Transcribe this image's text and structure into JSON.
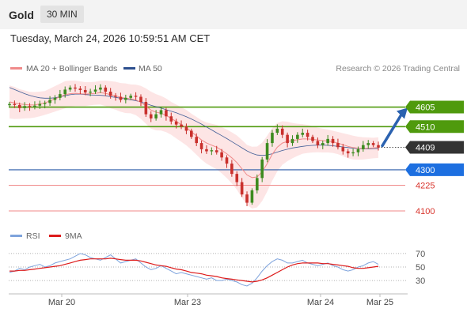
{
  "header": {
    "title": "Gold",
    "timeframe": "30 MIN",
    "datetime": "Tuesday, March 24, 2026 10:59:51 AM CET"
  },
  "legend": {
    "items": [
      {
        "label": "MA 20 + Bollinger Bands",
        "color": "#f08a8a"
      },
      {
        "label": "MA 50",
        "color": "#2d4f8e"
      }
    ],
    "credit": "Research © 2026 Trading Central"
  },
  "rsi_legend": {
    "items": [
      {
        "label": "RSI",
        "color": "#7ea3dc"
      },
      {
        "label": "9MA",
        "color": "#dd1b1b"
      }
    ]
  },
  "colors": {
    "resistance": "#4f9a0d",
    "pivot_line": "#2a5aa8",
    "pivot_badge": "#1d6fe0",
    "support": "#f08a8a",
    "support_text": "#d8322a",
    "last_badge": "#333333",
    "arrow": "#2b62b0",
    "candle_up": "#3d8b1f",
    "candle_down": "#c9302c",
    "band_fill": "#fde0e0"
  },
  "chart_data": [
    {
      "type": "candlestick",
      "instrument": "Gold",
      "timeframe": "30 MIN",
      "ylim": [
        4050,
        4730
      ],
      "x_ticks": [
        "Mar 20",
        "Mar 23",
        "Mar 24",
        "Mar 25"
      ],
      "last_price": 4409,
      "levels": [
        {
          "value": 4605,
          "label": "4605",
          "kind": "resistance"
        },
        {
          "value": 4510,
          "label": "4510",
          "kind": "resistance"
        },
        {
          "value": 4409,
          "label": "4409",
          "kind": "last"
        },
        {
          "value": 4300,
          "label": "4300",
          "kind": "pivot"
        },
        {
          "value": 4225,
          "label": "4225",
          "kind": "support"
        },
        {
          "value": 4100,
          "label": "4100",
          "kind": "support"
        }
      ],
      "close_path": [
        4620,
        4615,
        4600,
        4610,
        4605,
        4612,
        4620,
        4625,
        4640,
        4650,
        4668,
        4690,
        4700,
        4695,
        4688,
        4676,
        4680,
        4690,
        4700,
        4680,
        4660,
        4655,
        4640,
        4650,
        4660,
        4655,
        4630,
        4570,
        4550,
        4570,
        4590,
        4560,
        4535,
        4520,
        4510,
        4490,
        4460,
        4430,
        4400,
        4390,
        4395,
        4385,
        4360,
        4330,
        4280,
        4240,
        4180,
        4140,
        4200,
        4260,
        4350,
        4430,
        4480,
        4500,
        4470,
        4430,
        4450,
        4470,
        4480,
        4460,
        4440,
        4420,
        4430,
        4450,
        4430,
        4410,
        4390,
        4380,
        4385,
        4400,
        4420,
        4430,
        4420,
        4409
      ],
      "ma20_path": [
        4630,
        4625,
        4620,
        4618,
        4615,
        4616,
        4620,
        4625,
        4635,
        4645,
        4655,
        4665,
        4670,
        4672,
        4670,
        4668,
        4670,
        4672,
        4675,
        4672,
        4665,
        4660,
        4652,
        4648,
        4645,
        4640,
        4628,
        4610,
        4590,
        4580,
        4575,
        4565,
        4550,
        4535,
        4520,
        4505,
        4485,
        4465,
        4445,
        4430,
        4420,
        4410,
        4395,
        4378,
        4358,
        4335,
        4305,
        4275,
        4262,
        4265,
        4290,
        4330,
        4375,
        4410,
        4430,
        4438,
        4442,
        4446,
        4450,
        4450,
        4448,
        4445,
        4442,
        4440,
        4436,
        4430,
        4422,
        4414,
        4408,
        4405,
        4404,
        4405,
        4406,
        4408
      ],
      "ma50_path": [
        4700,
        4690,
        4680,
        4670,
        4662,
        4655,
        4650,
        4648,
        4648,
        4650,
        4655,
        4660,
        4665,
        4668,
        4668,
        4666,
        4664,
        4663,
        4662,
        4660,
        4656,
        4652,
        4648,
        4644,
        4640,
        4636,
        4630,
        4622,
        4614,
        4607,
        4600,
        4592,
        4585,
        4577,
        4568,
        4558,
        4547,
        4535,
        4522,
        4508,
        4494,
        4480,
        4466,
        4452,
        4437,
        4422,
        4407,
        4392,
        4380,
        4372,
        4370,
        4372,
        4378,
        4386,
        4394,
        4400,
        4406,
        4410,
        4414,
        4417,
        4419,
        4420,
        4420,
        4419,
        4417,
        4414,
        4411,
        4408,
        4405,
        4403,
        4402,
        4402,
        4403,
        4404
      ],
      "bb_width_path": [
        80,
        78,
        72,
        68,
        64,
        62,
        60,
        58,
        60,
        62,
        64,
        66,
        64,
        62,
        60,
        58,
        56,
        56,
        58,
        62,
        66,
        68,
        70,
        72,
        70,
        74,
        80,
        86,
        90,
        88,
        84,
        82,
        80,
        82,
        84,
        86,
        88,
        92,
        96,
        100,
        104,
        108,
        112,
        118,
        124,
        132,
        140,
        146,
        150,
        148,
        142,
        136,
        128,
        118,
        106,
        96,
        86,
        78,
        72,
        68,
        64,
        60,
        58,
        56,
        54,
        54,
        56,
        58,
        58,
        56,
        54,
        52,
        50,
        50
      ],
      "projection": {
        "from": 4409,
        "to": 4605
      }
    },
    {
      "type": "line",
      "name": "RSI",
      "ylim": [
        15,
        85
      ],
      "y_ticks": [
        70,
        50,
        30
      ],
      "series": [
        {
          "name": "RSI",
          "values": [
            42,
            44,
            48,
            46,
            50,
            52,
            54,
            50,
            52,
            56,
            58,
            60,
            62,
            66,
            70,
            68,
            64,
            62,
            60,
            64,
            68,
            62,
            56,
            58,
            60,
            62,
            56,
            50,
            46,
            48,
            52,
            48,
            44,
            40,
            42,
            40,
            38,
            36,
            34,
            32,
            34,
            30,
            30,
            32,
            30,
            28,
            24,
            22,
            26,
            34,
            44,
            52,
            58,
            62,
            60,
            56,
            56,
            58,
            60,
            56,
            54,
            52,
            54,
            56,
            52,
            50,
            46,
            44,
            46,
            50,
            52,
            56,
            58,
            54
          ]
        },
        {
          "name": "9MA",
          "values": [
            44,
            44,
            45,
            45,
            46,
            47,
            48,
            49,
            50,
            51,
            52,
            54,
            56,
            58,
            60,
            61,
            62,
            62,
            62,
            62,
            63,
            62,
            61,
            60,
            60,
            60,
            59,
            57,
            55,
            53,
            52,
            51,
            49,
            47,
            46,
            44,
            42,
            41,
            40,
            38,
            37,
            36,
            34,
            33,
            32,
            31,
            30,
            29,
            28,
            29,
            31,
            34,
            38,
            42,
            46,
            50,
            53,
            55,
            56,
            56,
            56,
            56,
            55,
            55,
            54,
            53,
            52,
            51,
            49,
            48,
            48,
            49,
            50,
            51
          ]
        }
      ]
    }
  ]
}
